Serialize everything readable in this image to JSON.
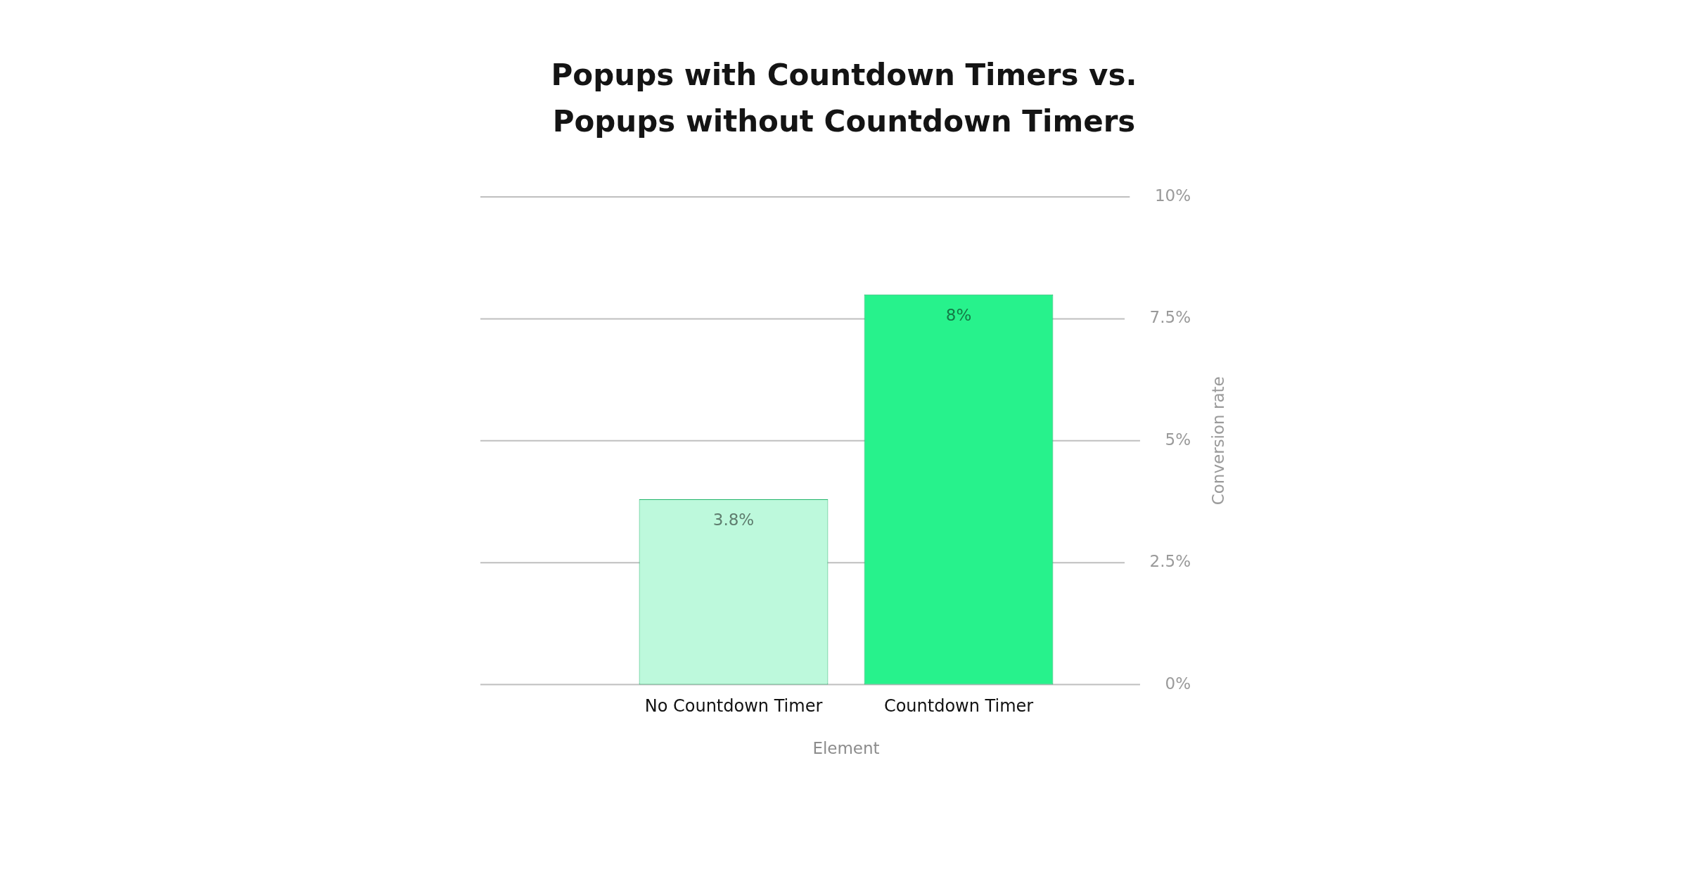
{
  "chart_data": {
    "type": "bar",
    "title": "Popups with Countdown Timers vs. Popups without Countdown Timers",
    "xlabel": "Element",
    "ylabel": "Conversion rate",
    "categories": [
      "No Countdown Timer",
      "Countdown Timer"
    ],
    "values": [
      3.8,
      8
    ],
    "colors": [
      "#bdf9dc",
      "#27f28c"
    ],
    "value_labels": [
      "3.8%",
      "8%"
    ],
    "ylim": [
      0,
      10
    ],
    "yticks": [
      {
        "value": 0,
        "label": "0%"
      },
      {
        "value": 2.5,
        "label": "2.5%"
      },
      {
        "value": 5,
        "label": "5%"
      },
      {
        "value": 7.5,
        "label": "7.5%"
      },
      {
        "value": 10,
        "label": "10%"
      }
    ],
    "grid": "y"
  }
}
